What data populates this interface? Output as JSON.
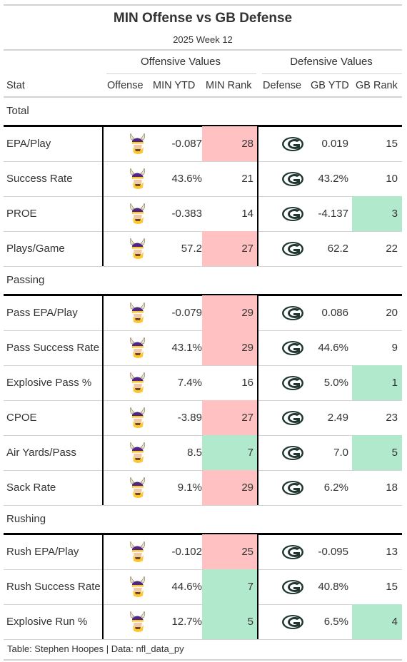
{
  "title": "MIN Offense vs GB Defense",
  "subtitle": "2025 Week 12",
  "spanners": {
    "offense": "Offensive Values",
    "defense": "Defensive Values"
  },
  "columns": {
    "stat": "Stat",
    "offense": "Offense",
    "min_ytd": "MIN YTD",
    "min_rank": "MIN Rank",
    "defense": "Defense",
    "gb_ytd": "GB YTD",
    "gb_rank": "GB Rank"
  },
  "colors": {
    "bad": "#ffc1c1",
    "good": "#b1e9cc",
    "packers_green": "#203731",
    "packers_gold": "#ffb612",
    "vikings_purple": "#4f2683",
    "vikings_gold": "#ffc62f"
  },
  "groups": [
    {
      "label": "Total",
      "rows": [
        {
          "stat": "EPA/Play",
          "min_ytd": "-0.087",
          "min_rank": "28",
          "min_rank_color": "bad",
          "gb_ytd": "0.019",
          "gb_rank": "15",
          "gb_rank_color": ""
        },
        {
          "stat": "Success Rate",
          "min_ytd": "43.6%",
          "min_rank": "21",
          "min_rank_color": "",
          "gb_ytd": "43.2%",
          "gb_rank": "10",
          "gb_rank_color": ""
        },
        {
          "stat": "PROE",
          "min_ytd": "-0.383",
          "min_rank": "14",
          "min_rank_color": "",
          "gb_ytd": "-4.137",
          "gb_rank": "3",
          "gb_rank_color": "good"
        },
        {
          "stat": "Plays/Game",
          "min_ytd": "57.2",
          "min_rank": "27",
          "min_rank_color": "bad",
          "gb_ytd": "62.2",
          "gb_rank": "22",
          "gb_rank_color": ""
        }
      ]
    },
    {
      "label": "Passing",
      "rows": [
        {
          "stat": "Pass EPA/Play",
          "min_ytd": "-0.079",
          "min_rank": "29",
          "min_rank_color": "bad",
          "gb_ytd": "0.086",
          "gb_rank": "20",
          "gb_rank_color": ""
        },
        {
          "stat": "Pass Success Rate",
          "min_ytd": "43.1%",
          "min_rank": "29",
          "min_rank_color": "bad",
          "gb_ytd": "44.6%",
          "gb_rank": "9",
          "gb_rank_color": ""
        },
        {
          "stat": "Explosive Pass %",
          "min_ytd": "7.4%",
          "min_rank": "16",
          "min_rank_color": "",
          "gb_ytd": "5.0%",
          "gb_rank": "1",
          "gb_rank_color": "good"
        },
        {
          "stat": "CPOE",
          "min_ytd": "-3.89",
          "min_rank": "27",
          "min_rank_color": "bad",
          "gb_ytd": "2.49",
          "gb_rank": "23",
          "gb_rank_color": ""
        },
        {
          "stat": "Air Yards/Pass",
          "min_ytd": "8.5",
          "min_rank": "7",
          "min_rank_color": "good",
          "gb_ytd": "7.0",
          "gb_rank": "5",
          "gb_rank_color": "good"
        },
        {
          "stat": "Sack Rate",
          "min_ytd": "9.1%",
          "min_rank": "29",
          "min_rank_color": "bad",
          "gb_ytd": "6.2%",
          "gb_rank": "18",
          "gb_rank_color": ""
        }
      ]
    },
    {
      "label": "Rushing",
      "rows": [
        {
          "stat": "Rush EPA/Play",
          "min_ytd": "-0.102",
          "min_rank": "25",
          "min_rank_color": "bad",
          "gb_ytd": "-0.095",
          "gb_rank": "13",
          "gb_rank_color": ""
        },
        {
          "stat": "Rush Success Rate",
          "min_ytd": "44.6%",
          "min_rank": "7",
          "min_rank_color": "good",
          "gb_ytd": "40.8%",
          "gb_rank": "15",
          "gb_rank_color": ""
        },
        {
          "stat": "Explosive Run %",
          "min_ytd": "12.7%",
          "min_rank": "5",
          "min_rank_color": "good",
          "gb_ytd": "6.5%",
          "gb_rank": "4",
          "gb_rank_color": "good"
        }
      ]
    }
  ],
  "offense_logo": "vikings-logo",
  "defense_logo": "packers-logo",
  "footer": "Table: Stephen Hoopes | Data: nfl_data_py"
}
